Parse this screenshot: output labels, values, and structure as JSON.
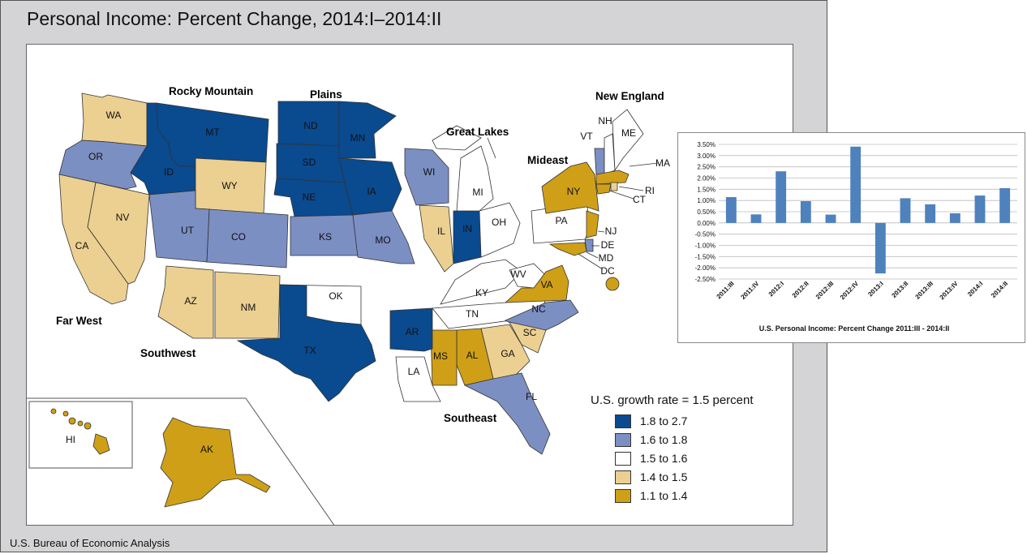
{
  "title": "Personal Income: Percent Change, 2014:I–2014:II",
  "source": "U.S. Bureau of Economic Analysis",
  "colors": {
    "c1": "#0a4a8f",
    "c2": "#7b8fc3",
    "c3": "#ffffff",
    "c4": "#ecd091",
    "c5": "#cf9f17",
    "bar": "#4f81bd"
  },
  "regions": {
    "rocky": "Rocky Mountain",
    "plains": "Plains",
    "great_lakes": "Great Lakes",
    "new_england": "New England",
    "mideast": "Mideast",
    "far_west": "Far West",
    "southwest": "Southwest",
    "southeast": "Southeast"
  },
  "states": {
    "WA": "WA",
    "OR": "OR",
    "CA": "CA",
    "NV": "NV",
    "ID": "ID",
    "MT": "MT",
    "WY": "WY",
    "UT": "UT",
    "CO": "CO",
    "AZ": "AZ",
    "NM": "NM",
    "ND": "ND",
    "SD": "SD",
    "NE": "NE",
    "KS": "KS",
    "MN": "MN",
    "IA": "IA",
    "MO": "MO",
    "WI": "WI",
    "IL": "IL",
    "MI": "MI",
    "IN": "IN",
    "OH": "OH",
    "KY": "KY",
    "TN": "TN",
    "WV": "WV",
    "VA": "VA",
    "NC": "NC",
    "SC": "SC",
    "GA": "GA",
    "AL": "AL",
    "MS": "MS",
    "AR": "AR",
    "LA": "LA",
    "FL": "FL",
    "TX": "TX",
    "OK": "OK",
    "PA": "PA",
    "NY": "NY",
    "NJ": "NJ",
    "DE": "DE",
    "MD": "MD",
    "DC": "DC",
    "VT": "VT",
    "NH": "NH",
    "ME": "ME",
    "MA": "MA",
    "RI": "RI",
    "CT": "CT",
    "HI": "HI",
    "AK": "AK"
  },
  "legend": {
    "title": "U.S. growth rate = 1.5 percent",
    "items": [
      {
        "label": "1.8 to 2.7",
        "color": "#0a4a8f"
      },
      {
        "label": "1.6 to 1.8",
        "color": "#7b8fc3"
      },
      {
        "label": "1.5 to 1.6",
        "color": "#ffffff"
      },
      {
        "label": "1.4 to 1.5",
        "color": "#ecd091"
      },
      {
        "label": "1.1 to 1.4",
        "color": "#cf9f17"
      }
    ]
  },
  "chart_data": {
    "type": "bar",
    "title": "U.S. Personal Income: Percent Change 2011:III - 2014:II",
    "categories": [
      "2011:III",
      "2011:IV",
      "2012:I",
      "2012:II",
      "2012:III",
      "2012:IV",
      "2013:I",
      "2013:II",
      "2013:III",
      "2013:IV",
      "2014:I",
      "2014:II"
    ],
    "values": [
      1.15,
      0.38,
      2.3,
      0.97,
      0.37,
      3.4,
      -2.25,
      1.1,
      0.83,
      0.43,
      1.22,
      1.55
    ],
    "ylim": [
      -2.5,
      3.5
    ],
    "yticks": [
      "-2.50%",
      "-2.00%",
      "-1.50%",
      "-1.00%",
      "-0.50%",
      "0.00%",
      "0.50%",
      "1.00%",
      "1.50%",
      "2.00%",
      "2.50%",
      "3.00%",
      "3.50%"
    ],
    "grid": true
  }
}
